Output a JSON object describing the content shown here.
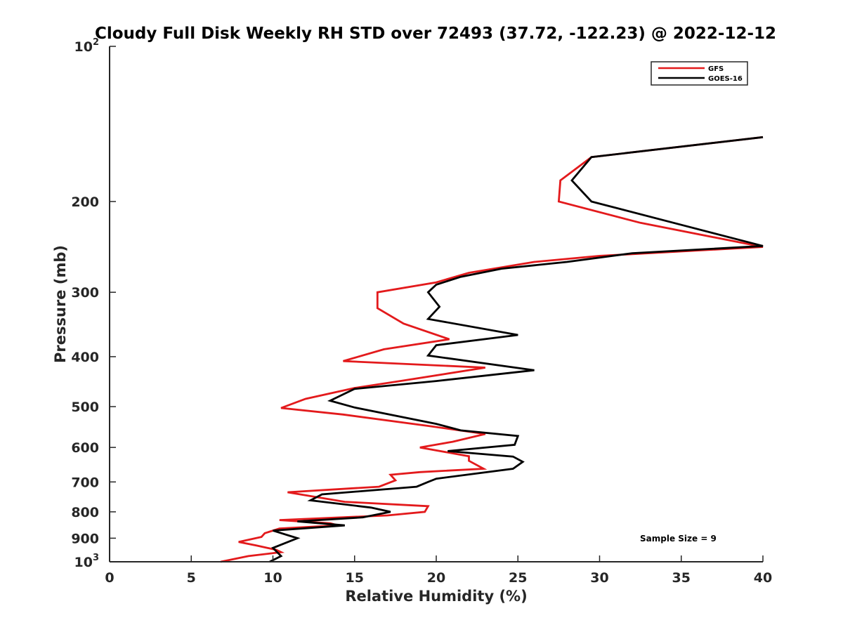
{
  "chart_data": {
    "type": "line",
    "title": "Cloudy Full Disk Weekly RH STD over 72493 (37.72, -122.23) @ 2022-12-12",
    "xlabel": "Relative Humidity (%)",
    "ylabel": "Pressure (mb)",
    "xlim": [
      0,
      40
    ],
    "ylim": [
      100,
      1000
    ],
    "y_scale": "log",
    "y_reversed": true,
    "grid": false,
    "legend_position": "top-right",
    "x_ticks": [
      "0",
      "5",
      "10",
      "15",
      "20",
      "25",
      "30",
      "35",
      "40"
    ],
    "y_ticks": [
      {
        "value": 100,
        "base": "10",
        "exp": "2"
      },
      {
        "value": 200,
        "label": "200"
      },
      {
        "value": 300,
        "label": "300"
      },
      {
        "value": 400,
        "label": "400"
      },
      {
        "value": 500,
        "label": "500"
      },
      {
        "value": 600,
        "label": "600"
      },
      {
        "value": 700,
        "label": "700"
      },
      {
        "value": 800,
        "label": "800"
      },
      {
        "value": 900,
        "label": "900"
      },
      {
        "value": 1000,
        "base": "10",
        "exp": "3"
      }
    ],
    "annotation": "Sample Size = 9",
    "series": [
      {
        "name": "GFS",
        "color": "#e31a1c",
        "points": [
          [
            40.0,
            150
          ],
          [
            29.5,
            164
          ],
          [
            27.6,
            182
          ],
          [
            27.5,
            200
          ],
          [
            32.5,
            220
          ],
          [
            40.0,
            245
          ],
          [
            30.0,
            255
          ],
          [
            26.0,
            262
          ],
          [
            22.0,
            275
          ],
          [
            20.0,
            287
          ],
          [
            16.4,
            300
          ],
          [
            16.4,
            322
          ],
          [
            18.0,
            345
          ],
          [
            20.8,
            370
          ],
          [
            16.8,
            387
          ],
          [
            14.3,
            408
          ],
          [
            23.0,
            420
          ],
          [
            18.0,
            445
          ],
          [
            15.0,
            460
          ],
          [
            12.0,
            483
          ],
          [
            10.5,
            503
          ],
          [
            14.3,
            518
          ],
          [
            19.5,
            545
          ],
          [
            23.0,
            565
          ],
          [
            21.0,
            585
          ],
          [
            19.0,
            600
          ],
          [
            22.0,
            624
          ],
          [
            22.0,
            637
          ],
          [
            22.9,
            660
          ],
          [
            19.0,
            670
          ],
          [
            17.2,
            678
          ],
          [
            17.5,
            695
          ],
          [
            16.5,
            715
          ],
          [
            10.9,
            733
          ],
          [
            14.4,
            765
          ],
          [
            19.5,
            780
          ],
          [
            19.3,
            800
          ],
          [
            17.0,
            813
          ],
          [
            10.4,
            830
          ],
          [
            13.5,
            842
          ],
          [
            14.0,
            850
          ],
          [
            10.4,
            862
          ],
          [
            9.5,
            880
          ],
          [
            9.3,
            895
          ],
          [
            7.9,
            915
          ],
          [
            9.0,
            930
          ],
          [
            10.2,
            948
          ],
          [
            10.5,
            958
          ],
          [
            8.5,
            975
          ],
          [
            6.8,
            1000
          ]
        ]
      },
      {
        "name": "GOES-16",
        "color": "#000000",
        "points": [
          [
            40.0,
            150
          ],
          [
            29.5,
            164
          ],
          [
            28.3,
            182
          ],
          [
            29.5,
            200
          ],
          [
            35.0,
            222
          ],
          [
            40.0,
            244
          ],
          [
            32.0,
            252
          ],
          [
            28.0,
            262
          ],
          [
            24.0,
            270
          ],
          [
            21.5,
            280
          ],
          [
            20.0,
            290
          ],
          [
            19.5,
            300
          ],
          [
            20.2,
            320
          ],
          [
            19.5,
            338
          ],
          [
            25.0,
            363
          ],
          [
            20.0,
            380
          ],
          [
            19.5,
            398
          ],
          [
            26.0,
            425
          ],
          [
            20.0,
            446
          ],
          [
            15.0,
            462
          ],
          [
            13.5,
            487
          ],
          [
            15.0,
            502
          ],
          [
            20.0,
            540
          ],
          [
            21.5,
            556
          ],
          [
            25.0,
            570
          ],
          [
            24.8,
            593
          ],
          [
            20.7,
            610
          ],
          [
            24.7,
            625
          ],
          [
            25.3,
            640
          ],
          [
            24.7,
            660
          ],
          [
            20.0,
            690
          ],
          [
            19.5,
            700
          ],
          [
            18.8,
            715
          ],
          [
            13.0,
            740
          ],
          [
            12.3,
            760
          ],
          [
            16.0,
            785
          ],
          [
            17.2,
            800
          ],
          [
            15.5,
            820
          ],
          [
            11.5,
            835
          ],
          [
            14.4,
            850
          ],
          [
            10.0,
            870
          ],
          [
            11.5,
            900
          ],
          [
            10.0,
            940
          ],
          [
            10.5,
            975
          ],
          [
            9.8,
            1000
          ]
        ]
      }
    ]
  }
}
